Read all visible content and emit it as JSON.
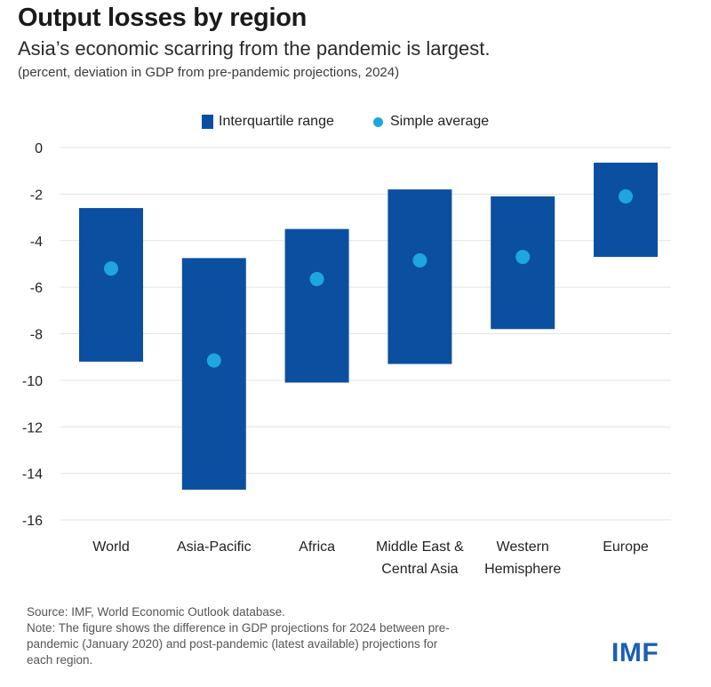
{
  "header": {
    "title": "Output losses by region",
    "subtitle": "Asia’s economic scarring from the pandemic is largest.",
    "units": "(percent, deviation in GDP from pre-pandemic projections, 2024)"
  },
  "legend": {
    "range_label": "Interquartile range",
    "average_label": "Simple average"
  },
  "colors": {
    "bar": "#0b4fa0",
    "dot": "#1da6e0",
    "grid": "#e3e3e3",
    "text": "#222222",
    "logo": "#1a5fb4"
  },
  "chart_data": {
    "type": "bar",
    "subtype": "floating-range-with-average",
    "title": "Output losses by region",
    "ylabel": "percent, deviation in GDP from pre-pandemic projections, 2024",
    "ylim": [
      -16,
      0
    ],
    "yticks": [
      0,
      -2,
      -4,
      -6,
      -8,
      -10,
      -12,
      -14,
      -16
    ],
    "grid": true,
    "legend": "top-center",
    "categories": [
      [
        "World"
      ],
      [
        "Asia-Pacific"
      ],
      [
        "Africa"
      ],
      [
        "Middle East &",
        "Central Asia"
      ],
      [
        "Western",
        "Hemisphere"
      ],
      [
        "Europe"
      ]
    ],
    "series": [
      {
        "name": "Interquartile range (top)",
        "values": [
          -2.6,
          -4.75,
          -3.5,
          -1.8,
          -2.1,
          -0.65
        ]
      },
      {
        "name": "Interquartile range (bottom)",
        "values": [
          -9.2,
          -14.7,
          -10.1,
          -9.3,
          -7.8,
          -4.7
        ]
      },
      {
        "name": "Simple average",
        "values": [
          -5.2,
          -9.15,
          -5.65,
          -4.85,
          -4.7,
          -2.1
        ]
      }
    ]
  },
  "footer": {
    "source": "Source: IMF, World Economic Outlook database.",
    "note_lines": [
      "Note: The figure shows the difference in GDP projections for 2024 between pre-",
      "pandemic (January 2020) and post-pandemic (latest available) projections for",
      "each region."
    ],
    "logo_text": "IMF"
  }
}
